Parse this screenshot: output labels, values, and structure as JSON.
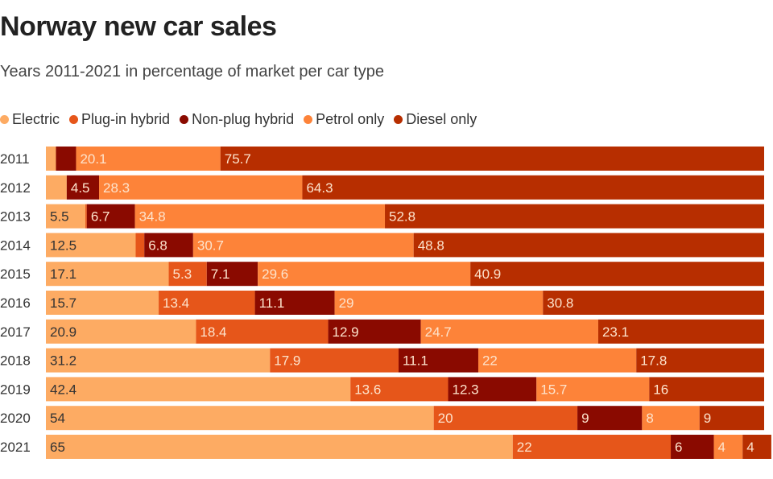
{
  "chart_data": {
    "type": "bar",
    "orientation": "horizontal",
    "stacked": true,
    "title": "Norway new car sales",
    "subtitle": "Years 2011-2021 in percentage of market per car type",
    "categories": [
      "2011",
      "2012",
      "2013",
      "2014",
      "2015",
      "2016",
      "2017",
      "2018",
      "2019",
      "2020",
      "2021"
    ],
    "xlim": [
      0,
      100
    ],
    "grid": false,
    "legend_position": "top-left",
    "series": [
      {
        "name": "Electric",
        "color": "#fdab63",
        "label_color": "#333333",
        "values": [
          1.4,
          2.9,
          5.5,
          12.5,
          17.1,
          15.7,
          20.9,
          31.2,
          42.4,
          54,
          65
        ],
        "labels": [
          "",
          "",
          "5.5",
          "12.5",
          "17.1",
          "15.7",
          "20.9",
          "31.2",
          "42.4",
          "54",
          "65"
        ]
      },
      {
        "name": "Plug-in hybrid",
        "color": "#e6561a",
        "label_color": "#fde3cc",
        "values": [
          0,
          0,
          0.2,
          1.2,
          5.3,
          13.4,
          18.4,
          17.9,
          13.6,
          20,
          22
        ],
        "labels": [
          "",
          "",
          "",
          "",
          "5.3",
          "13.4",
          "18.4",
          "17.9",
          "13.6",
          "20",
          "22"
        ]
      },
      {
        "name": "Non-plug hybrid",
        "color": "#8a0a00",
        "label_color": "#fde3cc",
        "values": [
          2.8,
          4.5,
          6.7,
          6.8,
          7.1,
          11.1,
          12.9,
          11.1,
          12.3,
          9,
          6
        ],
        "labels": [
          "",
          "4.5",
          "6.7",
          "6.8",
          "7.1",
          "11.1",
          "12.9",
          "11.1",
          "12.3",
          "9",
          "6"
        ]
      },
      {
        "name": "Petrol only",
        "color": "#fd8339",
        "label_color": "#fde3cc",
        "values": [
          20.1,
          28.3,
          34.8,
          30.7,
          29.6,
          29,
          24.7,
          22,
          15.7,
          8,
          4
        ],
        "labels": [
          "20.1",
          "28.3",
          "34.8",
          "30.7",
          "29.6",
          "29",
          "24.7",
          "22",
          "15.7",
          "8",
          "4"
        ]
      },
      {
        "name": "Diesel only",
        "color": "#b72e00",
        "label_color": "#fde3cc",
        "values": [
          75.7,
          64.3,
          52.8,
          48.8,
          40.9,
          30.8,
          23.1,
          17.8,
          16,
          9,
          4
        ],
        "labels": [
          "75.7",
          "64.3",
          "52.8",
          "48.8",
          "40.9",
          "30.8",
          "23.1",
          "17.8",
          "16",
          "9",
          "4"
        ]
      }
    ]
  }
}
